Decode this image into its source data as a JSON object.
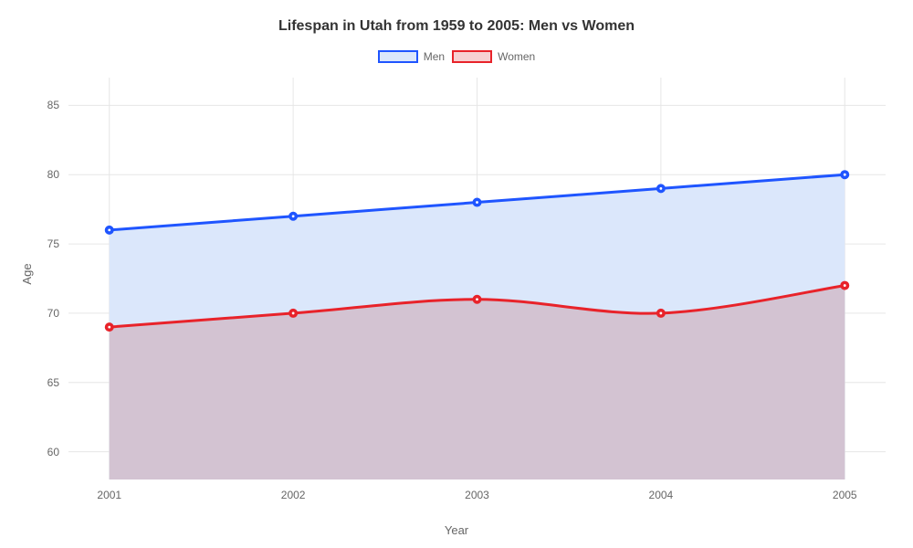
{
  "chart": {
    "type": "area-line",
    "title": "Lifespan in Utah from 1959 to 2005: Men vs Women",
    "title_fontsize": 16,
    "title_color": "#333333",
    "xlabel": "Year",
    "ylabel": "Age",
    "axis_label_fontsize": 13,
    "axis_label_color": "#666666",
    "tick_fontsize": 12,
    "tick_color": "#666666",
    "background_color": "#ffffff",
    "plot_background_color": "#ffffff",
    "grid_color": "#e6e6e6",
    "grid_width": 1,
    "x_categories": [
      "2001",
      "2002",
      "2003",
      "2004",
      "2005"
    ],
    "x_domain_padding": 0.05,
    "ylim": [
      58,
      87
    ],
    "yticks": [
      60,
      65,
      70,
      75,
      80,
      85
    ],
    "line_width": 3,
    "marker_radius": 4,
    "marker_inner_color": "#ffffff",
    "series": [
      {
        "name": "Men",
        "values": [
          76,
          77,
          78,
          79,
          80
        ],
        "line_color": "#1f55ff",
        "fill_color": "#dbe7fb",
        "fill_opacity": 1.0,
        "marker_border": "#1f55ff",
        "marker_fill": "#1f55ff"
      },
      {
        "name": "Women",
        "values": [
          69,
          70,
          71,
          70,
          72
        ],
        "line_color": "#e8232a",
        "fill_color": "#d3c3d2",
        "fill_opacity": 1.0,
        "marker_border": "#e8232a",
        "marker_fill": "#e8232a"
      }
    ],
    "legend": {
      "position": "top-center",
      "swatch_border_width": 2,
      "items": [
        {
          "label": "Men",
          "border_color": "#1f55ff",
          "fill_color": "#dbe7fb"
        },
        {
          "label": "Women",
          "border_color": "#e8232a",
          "fill_color": "#f7d1d2"
        }
      ]
    }
  }
}
